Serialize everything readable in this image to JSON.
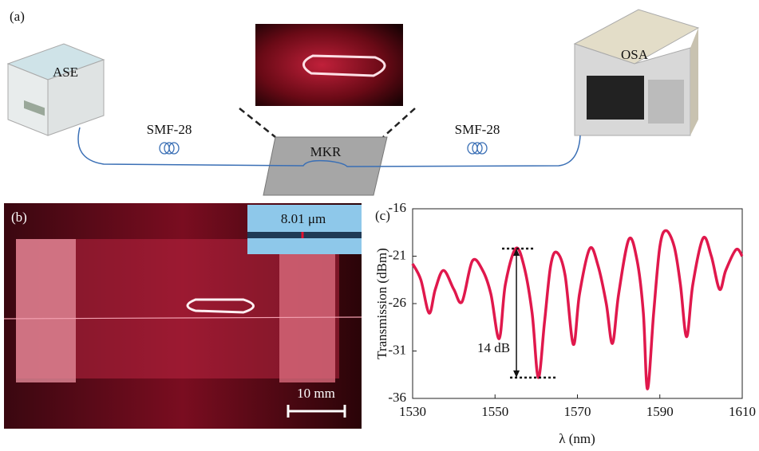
{
  "panel_a": {
    "label": "(a)",
    "source": "ASE",
    "analyzer": "OSA",
    "fiber_left": "SMF-28",
    "fiber_right": "SMF-28",
    "resonator": "MKR"
  },
  "panel_b": {
    "label": "(b)",
    "diameter": "8.01 μm",
    "scale_bar": "10 mm"
  },
  "panel_c": {
    "label": "(c)"
  },
  "chart_data": {
    "type": "line",
    "xlabel": "λ (nm)",
    "ylabel": "Transmission (dBm)",
    "annotation": "14 dB",
    "x": [
      1530,
      1532,
      1534,
      1535.5,
      1537.5,
      1540,
      1542,
      1544.5,
      1547,
      1549,
      1551,
      1552.5,
      1555,
      1557,
      1559,
      1560.5,
      1562,
      1563.5,
      1565,
      1567,
      1569,
      1570.5,
      1573,
      1575,
      1577,
      1578.5,
      1580,
      1582.5,
      1584.5,
      1586,
      1587,
      1588.5,
      1590,
      1591.5,
      1593.5,
      1595,
      1596.5,
      1598,
      1600.5,
      1602.5,
      1604.5,
      1606,
      1608.5,
      1610
    ],
    "series": [
      {
        "color": "#e0184c",
        "values": [
          -21.8,
          -23.5,
          -27,
          -24.5,
          -22.5,
          -24.5,
          -25.8,
          -21.5,
          -22.5,
          -25,
          -29.7,
          -24,
          -20.2,
          -22,
          -27,
          -33.8,
          -28,
          -22,
          -20.6,
          -23,
          -30.3,
          -25,
          -20.2,
          -22,
          -26,
          -30.2,
          -25,
          -19.2,
          -21.5,
          -27,
          -35,
          -27,
          -20,
          -18.3,
          -20,
          -24,
          -29.5,
          -24,
          -19.1,
          -21,
          -24.5,
          -22.5,
          -20.3,
          -21
        ]
      }
    ],
    "xlim": [
      1530,
      1610
    ],
    "ylim": [
      -36,
      -16
    ],
    "xticks": [
      1530,
      1550,
      1570,
      1590,
      1610
    ],
    "yticks": [
      -36,
      -31,
      -26,
      -21,
      -16
    ]
  }
}
